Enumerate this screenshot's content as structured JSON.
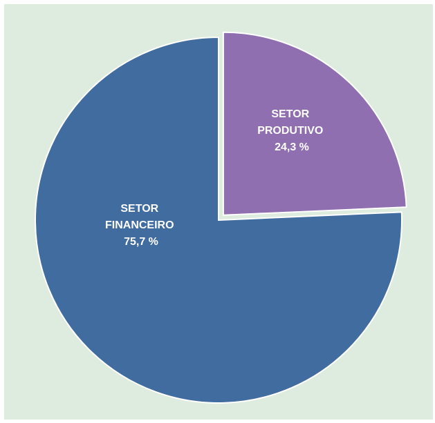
{
  "chart_data": {
    "type": "pie",
    "slices": [
      {
        "name": "SETOR PRODUTIVO",
        "label_lines": [
          "SETOR",
          "PRODUTIVO"
        ],
        "value": 24.3,
        "value_label": "24,3 %",
        "color": "#8f6fb0",
        "exploded": true
      },
      {
        "name": "SETOR FINANCEIRO",
        "label_lines": [
          "SETOR",
          "FINANCEIRO"
        ],
        "value": 75.7,
        "value_label": "75,7 %",
        "color": "#416ca0",
        "exploded": false
      }
    ],
    "background": "#deebdf",
    "start_angle": "12 o'clock, clockwise"
  }
}
